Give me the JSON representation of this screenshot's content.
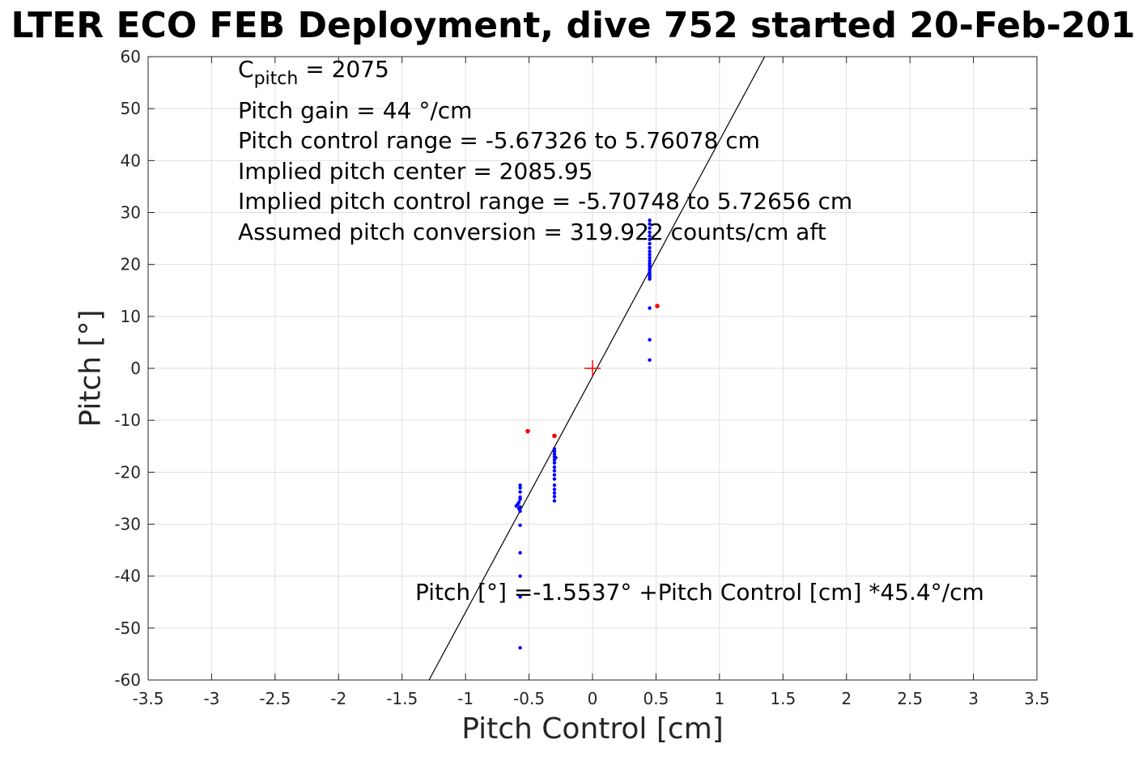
{
  "title": "LTER ECO FEB Deployment, dive 752 started 20-Feb-201",
  "annotations": {
    "c_pitch_main": "C",
    "c_pitch_sub": "pitch",
    "c_pitch_rest": " = 2075",
    "pitch_gain": "Pitch gain = 44 °/cm",
    "control_range": "Pitch control range = -5.67326 to 5.76078 cm",
    "implied_center": "Implied pitch center = 2085.95",
    "implied_range": "Implied pitch control range = -5.70748 to 5.72656 cm",
    "conversion": "Assumed pitch conversion = 319.922 counts/cm aft",
    "fit_equation": "Pitch [°] =-1.5537° +Pitch Control [cm] *45.4°/cm"
  },
  "chart_data": {
    "type": "scatter",
    "xlabel": "Pitch Control [cm]",
    "ylabel": "Pitch [°]",
    "xlim": [
      -3.5,
      3.5
    ],
    "ylim": [
      -60,
      60
    ],
    "grid": true,
    "xticks": [
      -3.5,
      -3,
      -2.5,
      -2,
      -1.5,
      -1,
      -0.5,
      0,
      0.5,
      1,
      1.5,
      2,
      2.5,
      3,
      3.5
    ],
    "yticks": [
      -60,
      -50,
      -40,
      -30,
      -20,
      -10,
      0,
      10,
      20,
      30,
      40,
      50,
      60
    ],
    "xtick_labels": [
      "-3.5",
      "-3",
      "-2.5",
      "-2",
      "-1.5",
      "-1",
      "-0.5",
      "0",
      "0.5",
      "1",
      "1.5",
      "2",
      "2.5",
      "3",
      "3.5"
    ],
    "ytick_labels": [
      "-60",
      "-50",
      "-40",
      "-30",
      "-20",
      "-10",
      "0",
      "10",
      "20",
      "30",
      "40",
      "50",
      "60"
    ],
    "fit_line": {
      "intercept": -1.5537,
      "slope": 45.4,
      "color": "#000000"
    },
    "center_marker": {
      "x": 0,
      "y": 0,
      "color": "#ff0000"
    },
    "series": [
      {
        "color": "#0000ff",
        "points": [
          [
            0.45,
            28.5
          ],
          [
            0.45,
            27.8
          ],
          [
            0.45,
            27.0
          ],
          [
            0.45,
            26.2
          ],
          [
            0.45,
            25.5
          ],
          [
            0.45,
            24.8
          ],
          [
            0.45,
            24.0
          ],
          [
            0.45,
            23.2
          ],
          [
            0.45,
            22.5
          ],
          [
            0.45,
            21.9
          ],
          [
            0.45,
            21.3
          ],
          [
            0.45,
            20.7
          ],
          [
            0.45,
            20.2
          ],
          [
            0.45,
            19.7
          ],
          [
            0.45,
            19.2
          ],
          [
            0.45,
            18.8
          ],
          [
            0.45,
            18.4
          ],
          [
            0.45,
            18.0
          ],
          [
            0.45,
            17.6
          ],
          [
            0.45,
            17.2
          ],
          [
            0.45,
            11.6
          ],
          [
            0.45,
            5.5
          ],
          [
            0.45,
            1.6
          ],
          [
            -0.3,
            -15.5
          ],
          [
            -0.3,
            -16.0
          ],
          [
            -0.3,
            -16.5
          ],
          [
            -0.3,
            -17.0
          ],
          [
            -0.3,
            -17.6
          ],
          [
            -0.3,
            -18.2
          ],
          [
            -0.29,
            -17.2
          ],
          [
            -0.3,
            -19.0
          ],
          [
            -0.3,
            -19.7
          ],
          [
            -0.3,
            -20.5
          ],
          [
            -0.3,
            -21.3
          ],
          [
            -0.3,
            -22.5
          ],
          [
            -0.3,
            -23.3
          ],
          [
            -0.3,
            -24.0
          ],
          [
            -0.3,
            -24.7
          ],
          [
            -0.3,
            -25.5
          ],
          [
            -0.57,
            -22.5
          ],
          [
            -0.57,
            -23.0
          ],
          [
            -0.57,
            -23.8
          ],
          [
            -0.57,
            -24.8
          ],
          [
            -0.57,
            -25.2
          ],
          [
            -0.58,
            -25.8
          ],
          [
            -0.59,
            -26.2
          ],
          [
            -0.6,
            -26.5
          ],
          [
            -0.57,
            -26.7
          ],
          [
            -0.58,
            -27.0
          ],
          [
            -0.57,
            -27.5
          ],
          [
            -0.57,
            -30.2
          ],
          [
            -0.57,
            -35.5
          ],
          [
            -0.57,
            -40.0
          ],
          [
            -0.57,
            -44.0
          ],
          [
            -0.57,
            -53.8
          ]
        ]
      },
      {
        "color": "#ff0000",
        "points": [
          [
            -0.51,
            -12.1
          ],
          [
            -0.3,
            -13.0
          ],
          [
            0.51,
            12.0
          ]
        ]
      }
    ]
  }
}
